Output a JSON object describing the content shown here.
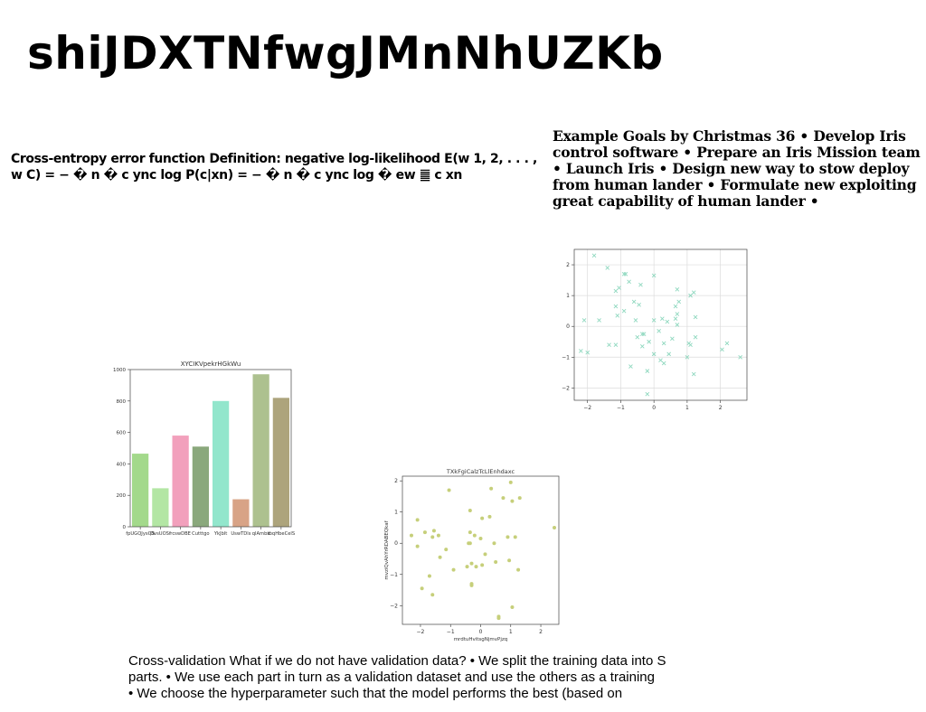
{
  "slide": {
    "title": "shiJDXTNfwgJMnNhUZKb",
    "left_text": "Cross-entropy error function Definition: negative log-likelihood E(w 1, 2, . . . , w C) = − � n � c ync log P(c|xn) = − � n � c ync log � ew ䷀ c xn",
    "right_text": "Example Goals by Christmas 36 • Develop Iris control software • Prepare an Iris Mission team • Launch Iris • Design new way to stow deploy from human lander • Formulate new exploiting great capability of human lander •",
    "bottom_lines": [
      "Cross-validation What if we do not have validation data? • We split the training data into S",
      "parts. • We use each part in turn as a validation dataset and use the others as a training",
      "• We choose the hyperparameter such that the model performs the best (based on"
    ]
  },
  "chart_data": [
    {
      "type": "bar",
      "title": "XYCIKVpekrHGkWu",
      "categories": [
        "fpUGQJysQS",
        "OvsUOSf",
        "rcswDBE",
        "Cutttgo",
        "YkJblt",
        "UswTDls",
        "qlAmbx",
        "tbqHbeCelS"
      ],
      "values": [
        465,
        245,
        580,
        510,
        800,
        175,
        970,
        820
      ],
      "colors": [
        "#a3d98b",
        "#b3e6a4",
        "#f2a0bc",
        "#8aa87c",
        "#92e6cc",
        "#d8a386",
        "#adc18f",
        "#ada47c"
      ],
      "ylim": [
        0,
        1000
      ],
      "yticks": [
        0,
        200,
        400,
        600,
        800,
        1000
      ],
      "xlabel": "",
      "ylabel": ""
    },
    {
      "type": "scatter",
      "marker": "x",
      "color": "#8fd8bf",
      "title": "",
      "xlabel": "",
      "ylabel": "",
      "xlim": [
        -2.4,
        2.8
      ],
      "ylim": [
        -2.4,
        2.5
      ],
      "xticks": [
        -2,
        -1,
        0,
        1,
        2
      ],
      "yticks": [
        -2,
        -1,
        0,
        1,
        2
      ],
      "grid": true,
      "points": [
        [
          -1.8,
          2.3
        ],
        [
          -1.4,
          1.9
        ],
        [
          -0.9,
          1.7
        ],
        [
          -0.85,
          1.7
        ],
        [
          0.0,
          1.65
        ],
        [
          -1.05,
          1.25
        ],
        [
          -1.15,
          1.15
        ],
        [
          -0.75,
          1.45
        ],
        [
          -0.4,
          1.35
        ],
        [
          0.7,
          1.2
        ],
        [
          1.2,
          1.1
        ],
        [
          1.1,
          1.0
        ],
        [
          0.75,
          0.8
        ],
        [
          -0.6,
          0.8
        ],
        [
          -0.45,
          0.7
        ],
        [
          -1.15,
          0.65
        ],
        [
          0.65,
          0.65
        ],
        [
          -0.9,
          0.5
        ],
        [
          0.7,
          0.4
        ],
        [
          -1.1,
          0.35
        ],
        [
          -2.1,
          0.2
        ],
        [
          -1.65,
          0.2
        ],
        [
          -0.55,
          0.2
        ],
        [
          0.25,
          0.25
        ],
        [
          0.4,
          0.15
        ],
        [
          0.0,
          0.2
        ],
        [
          1.25,
          0.3
        ],
        [
          0.65,
          0.25
        ],
        [
          0.7,
          0.05
        ],
        [
          0.15,
          -0.15
        ],
        [
          -0.5,
          -0.35
        ],
        [
          -0.35,
          -0.25
        ],
        [
          -0.3,
          -0.25
        ],
        [
          -0.15,
          -0.5
        ],
        [
          0.55,
          -0.4
        ],
        [
          1.25,
          -0.35
        ],
        [
          -1.15,
          -0.6
        ],
        [
          -1.35,
          -0.6
        ],
        [
          -0.35,
          -0.65
        ],
        [
          0.3,
          -0.55
        ],
        [
          1.05,
          -0.55
        ],
        [
          1.1,
          -0.6
        ],
        [
          2.2,
          -0.55
        ],
        [
          2.05,
          -0.75
        ],
        [
          -2.2,
          -0.8
        ],
        [
          -2.0,
          -0.85
        ],
        [
          0.45,
          -0.9
        ],
        [
          0.0,
          -0.9
        ],
        [
          0.2,
          -1.1
        ],
        [
          0.3,
          -1.2
        ],
        [
          1.0,
          -1.0
        ],
        [
          2.6,
          -1.0
        ],
        [
          -0.7,
          -1.3
        ],
        [
          -0.2,
          -1.45
        ],
        [
          1.2,
          -1.55
        ],
        [
          -0.2,
          -2.2
        ]
      ]
    },
    {
      "type": "scatter",
      "marker": "o",
      "color": "#c6cf7a",
      "title": "TXkFgiCalzTcLlEnhdaxc",
      "xlabel": "mrdtuHvitsgNjmvPjzq",
      "ylabel": "mvziQvAhYrRDABEQkaf",
      "xlim": [
        -2.6,
        2.6
      ],
      "ylim": [
        -2.6,
        2.15
      ],
      "xticks": [
        -2,
        -1,
        0,
        1,
        2
      ],
      "yticks": [
        -2,
        -1,
        0,
        1,
        2
      ],
      "grid": false,
      "points": [
        [
          -1.05,
          1.7
        ],
        [
          0.35,
          1.75
        ],
        [
          1.0,
          1.95
        ],
        [
          1.3,
          1.45
        ],
        [
          0.75,
          1.45
        ],
        [
          1.05,
          1.35
        ],
        [
          -0.35,
          1.05
        ],
        [
          0.3,
          0.85
        ],
        [
          0.05,
          0.8
        ],
        [
          -2.1,
          0.75
        ],
        [
          -1.55,
          0.4
        ],
        [
          -1.85,
          0.35
        ],
        [
          -1.4,
          0.25
        ],
        [
          -2.3,
          0.25
        ],
        [
          -1.6,
          0.2
        ],
        [
          -0.35,
          0.35
        ],
        [
          0.0,
          0.15
        ],
        [
          -0.2,
          0.25
        ],
        [
          0.9,
          0.2
        ],
        [
          1.15,
          0.2
        ],
        [
          2.45,
          0.5
        ],
        [
          -0.4,
          0.0
        ],
        [
          -0.35,
          0.0
        ],
        [
          0.45,
          0.0
        ],
        [
          -2.1,
          -0.1
        ],
        [
          -1.15,
          -0.2
        ],
        [
          0.15,
          -0.35
        ],
        [
          -1.35,
          -0.45
        ],
        [
          0.95,
          -0.55
        ],
        [
          0.5,
          -0.6
        ],
        [
          -0.3,
          -0.65
        ],
        [
          -0.15,
          -0.75
        ],
        [
          0.05,
          -0.7
        ],
        [
          -0.45,
          -0.75
        ],
        [
          1.25,
          -0.85
        ],
        [
          -0.9,
          -0.85
        ],
        [
          -1.7,
          -1.05
        ],
        [
          -1.95,
          -1.45
        ],
        [
          -1.6,
          -1.65
        ],
        [
          -0.3,
          -1.3
        ],
        [
          -0.3,
          -1.35
        ],
        [
          1.05,
          -2.05
        ],
        [
          0.6,
          -2.4
        ],
        [
          0.6,
          -2.35
        ]
      ]
    }
  ]
}
